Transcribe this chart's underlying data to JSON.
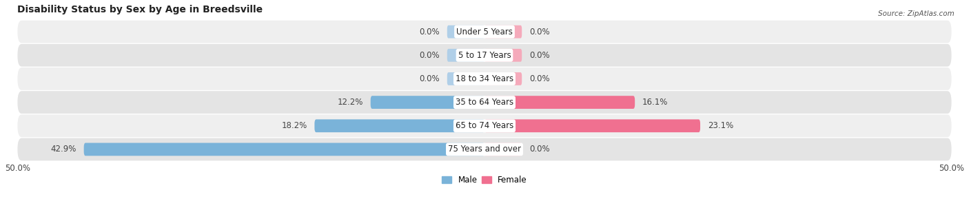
{
  "title": "Disability Status by Sex by Age in Breedsville",
  "source": "Source: ZipAtlas.com",
  "categories": [
    "Under 5 Years",
    "5 to 17 Years",
    "18 to 34 Years",
    "35 to 64 Years",
    "65 to 74 Years",
    "75 Years and over"
  ],
  "male_values": [
    0.0,
    0.0,
    0.0,
    12.2,
    18.2,
    42.9
  ],
  "female_values": [
    0.0,
    0.0,
    0.0,
    16.1,
    23.1,
    0.0
  ],
  "male_color": "#7ab3d9",
  "female_color": "#f07090",
  "male_stub_color": "#b0cfe8",
  "female_stub_color": "#f5aabb",
  "row_bg_even": "#efefef",
  "row_bg_odd": "#e4e4e4",
  "xlim": 50.0,
  "title_fontsize": 10,
  "label_fontsize": 8.5,
  "value_fontsize": 8.5,
  "tick_fontsize": 8.5,
  "bar_height": 0.55,
  "stub_size": 4.0,
  "legend_labels": [
    "Male",
    "Female"
  ]
}
